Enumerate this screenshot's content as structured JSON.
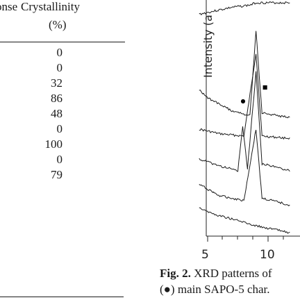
{
  "table": {
    "header_response": "onse",
    "header_crystallinity": "Crystallinity",
    "header_unit": "(%)",
    "crystallinity_values": [
      "0",
      "0",
      "32",
      "86",
      "48",
      "0",
      "100",
      "0",
      "79"
    ]
  },
  "figure": {
    "y_axis_label": "Intensity (a",
    "x_tick_labels": [
      "5",
      "10"
    ],
    "caption_label": "Fig. 2.",
    "caption_line1": " XRD patterns of",
    "caption_line2": "(●) main SAPO-5 char."
  },
  "chart_data": {
    "type": "line",
    "title": "",
    "xlabel": "",
    "ylabel": "Intensity (a",
    "xlim": [
      4.3,
      11.8
    ],
    "x_ticks": [
      5,
      10
    ],
    "series": [
      {
        "values": [
          [
            4.3,
            0.95
          ],
          [
            7.0,
            0.98
          ],
          [
            8.5,
            0.99
          ],
          [
            9.0,
            1.0
          ],
          [
            11.8,
            1.0
          ]
        ]
      },
      {
        "values": [
          [
            4.3,
            0.62
          ],
          [
            5.2,
            0.58
          ],
          [
            7.0,
            0.53
          ],
          [
            8.5,
            0.51
          ],
          [
            9.0,
            0.88
          ],
          [
            9.5,
            0.52
          ],
          [
            11.8,
            0.5
          ]
        ]
      },
      {
        "values": [
          [
            4.3,
            0.45
          ],
          [
            6.0,
            0.43
          ],
          [
            8.0,
            0.42
          ],
          [
            9.0,
            0.78
          ],
          [
            9.5,
            0.42
          ],
          [
            11.8,
            0.41
          ]
        ]
      },
      {
        "values": [
          [
            4.3,
            0.32
          ],
          [
            6.0,
            0.29
          ],
          [
            7.5,
            0.27
          ],
          [
            7.9,
            0.46
          ],
          [
            8.3,
            0.28
          ],
          [
            9.0,
            0.7
          ],
          [
            9.5,
            0.3
          ],
          [
            11.8,
            0.27
          ]
        ]
      },
      {
        "values": [
          [
            4.3,
            0.21
          ],
          [
            6.0,
            0.16
          ],
          [
            8.0,
            0.14
          ],
          [
            9.0,
            0.45
          ],
          [
            9.5,
            0.15
          ],
          [
            11.8,
            0.12
          ]
        ]
      },
      {
        "values": [
          [
            4.3,
            0.11
          ],
          [
            5.5,
            0.08
          ],
          [
            7.0,
            0.06
          ],
          [
            9.0,
            0.03
          ],
          [
            11.8,
            0.0
          ]
        ]
      }
    ],
    "markers": [
      {
        "symbol": "●",
        "x": 7.9
      },
      {
        "symbol": "■",
        "x": 9.7
      }
    ]
  }
}
